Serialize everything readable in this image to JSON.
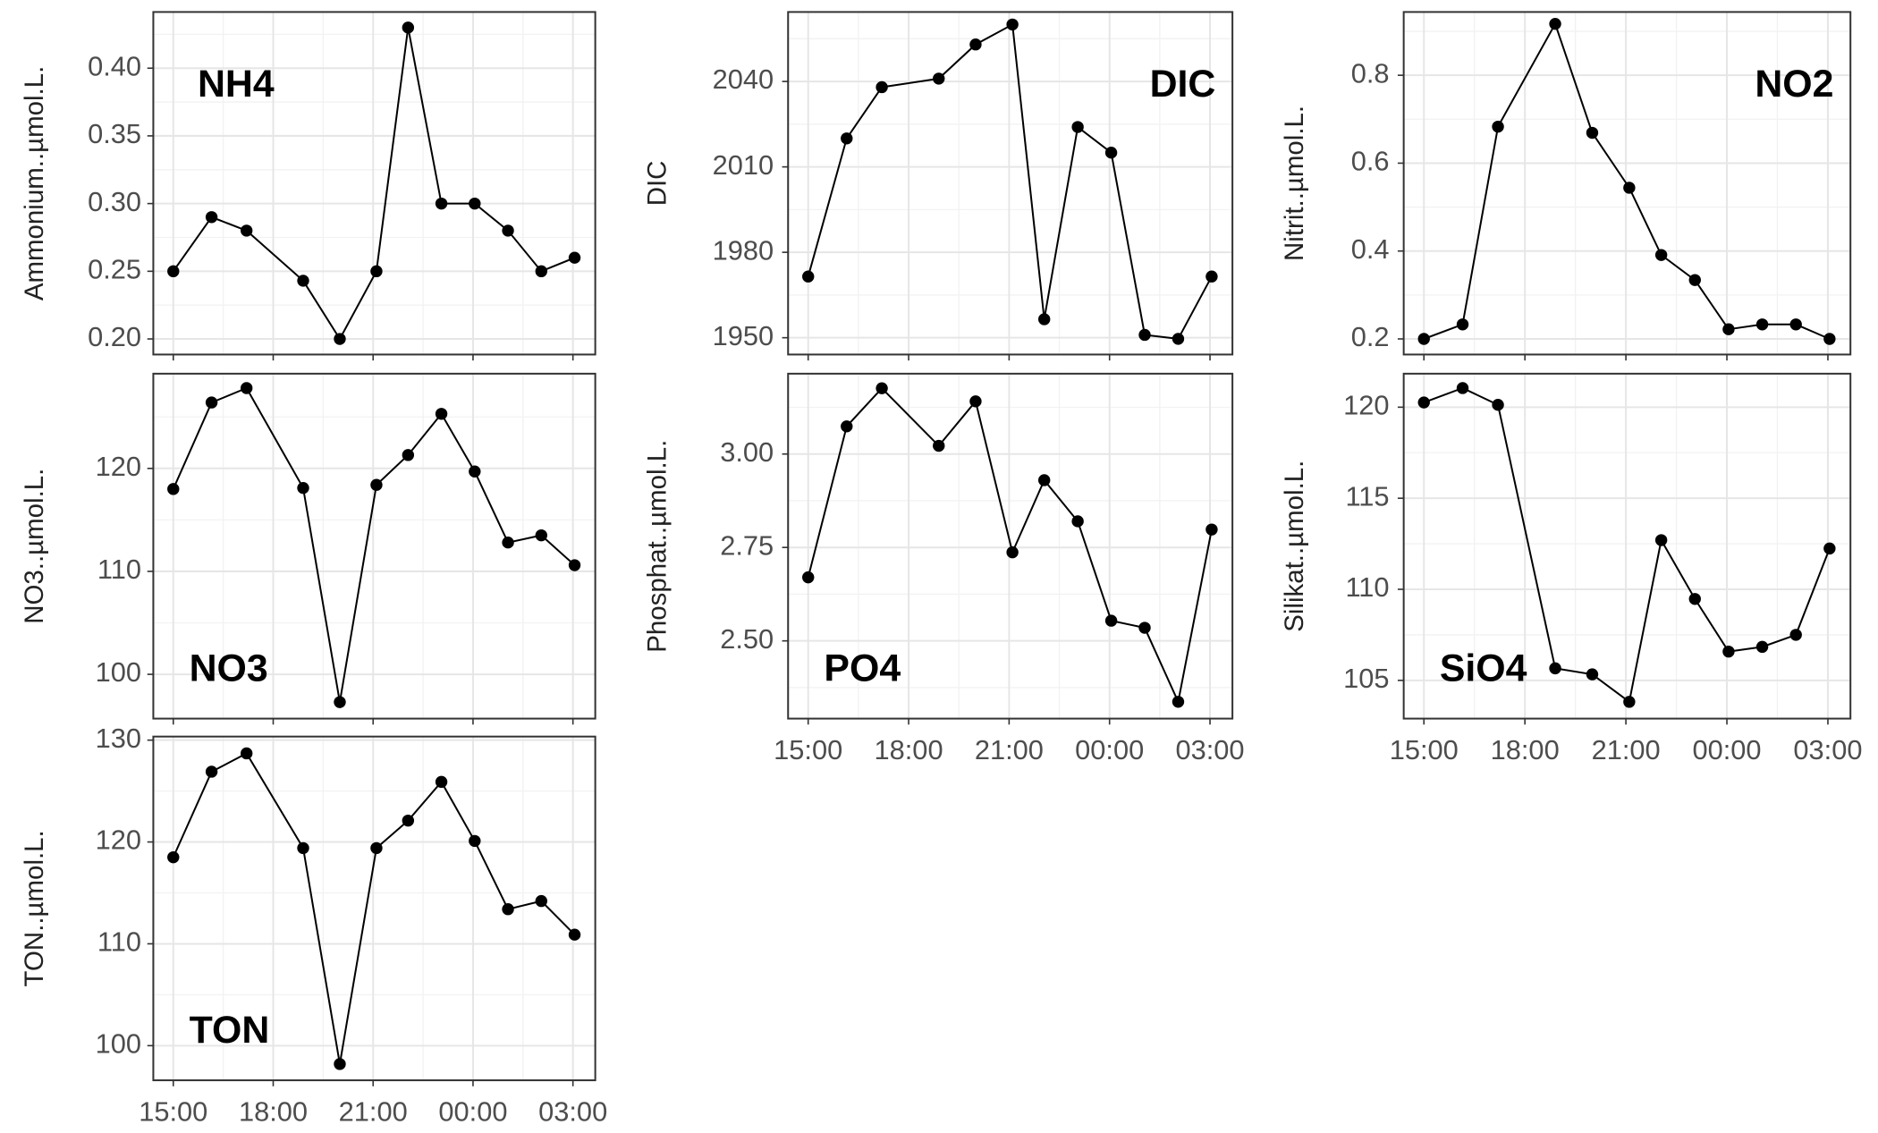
{
  "chart_data": [
    {
      "type": "line",
      "label": "NH4",
      "ylabel": "Ammonium..µmol.L.",
      "x": [
        15,
        16.15,
        17.2,
        18.9,
        20.0,
        21.1,
        22.05,
        23.05,
        24.05,
        25.05,
        26.05,
        27.05
      ],
      "values": [
        0.25,
        0.29,
        0.28,
        0.243,
        0.2,
        0.25,
        0.43,
        0.3,
        0.3,
        0.28,
        0.25,
        0.26
      ],
      "xlim": [
        14.4,
        27.67
      ],
      "xticks": [
        15,
        18,
        21,
        24,
        27
      ],
      "ylim": [
        0.1885,
        0.4415
      ],
      "yticks": [
        {
          "value": 0.2,
          "label": "0.20"
        },
        0.25,
        {
          "value": 0.3,
          "label": "0.30"
        },
        0.35,
        {
          "value": 0.4,
          "label": "0.40"
        }
      ],
      "color": "#000000",
      "grid": true
    },
    {
      "type": "line",
      "label": "DIC",
      "ylabel": "DIC",
      "x": [
        15,
        16.15,
        17.2,
        18.9,
        20.0,
        21.1,
        22.05,
        23.05,
        24.05,
        25.05,
        26.05,
        27.05
      ],
      "values": [
        1971.5,
        2020,
        2038,
        2041,
        2053,
        2060,
        1956.5,
        2024,
        2015,
        1951,
        1949.6,
        1971.5
      ],
      "xlim": [
        14.4,
        27.67
      ],
      "xticks": [
        15,
        18,
        21,
        24,
        27
      ],
      "ylim": [
        1944.1,
        2064.4
      ],
      "yticks": [
        1950,
        1980,
        2010,
        2040
      ],
      "color": "#000000",
      "grid": true
    },
    {
      "type": "line",
      "label": "NO2",
      "ylabel": "Nitrit..µmol.L.",
      "x": [
        15,
        16.15,
        17.2,
        18.9,
        20.0,
        21.1,
        22.05,
        23.05,
        24.05,
        25.05,
        26.05,
        27.05
      ],
      "values": [
        0.2,
        0.233,
        0.683,
        0.917,
        0.669,
        0.544,
        0.391,
        0.334,
        0.222,
        0.233,
        0.233,
        0.2
      ],
      "xlim": [
        14.4,
        27.67
      ],
      "xticks": [
        15,
        18,
        21,
        24,
        27
      ],
      "ylim": [
        0.1645,
        0.944
      ],
      "yticks": [
        0.2,
        0.4,
        0.6,
        0.8
      ],
      "color": "#000000",
      "grid": true
    },
    {
      "type": "line",
      "label": "NO3",
      "ylabel": "NO3..µmol.L.",
      "x": [
        15,
        16.15,
        17.2,
        18.9,
        20.0,
        21.1,
        22.05,
        23.05,
        24.05,
        25.05,
        26.05,
        27.05
      ],
      "values": [
        118.0,
        126.4,
        127.8,
        118.1,
        97.3,
        118.4,
        121.3,
        125.3,
        119.7,
        112.8,
        113.5,
        110.6
      ],
      "xlim": [
        14.4,
        27.67
      ],
      "xticks": [
        15,
        18,
        21,
        24,
        27
      ],
      "ylim": [
        95.7,
        129.2
      ],
      "yticks": [
        100,
        110,
        120
      ],
      "color": "#000000",
      "grid": true
    },
    {
      "type": "line",
      "label": "PO4",
      "ylabel": "Phosphat..µmol.L.",
      "x": [
        15,
        16.15,
        17.2,
        18.9,
        20.0,
        21.1,
        22.05,
        23.05,
        24.05,
        25.05,
        26.05,
        27.05
      ],
      "values": [
        2.67,
        3.074,
        3.176,
        3.022,
        3.141,
        2.737,
        2.93,
        2.82,
        2.554,
        2.535,
        2.337,
        2.798
      ],
      "xlim": [
        14.4,
        27.67
      ],
      "xticks": [
        {
          "value": 15,
          "label": "15:00"
        },
        {
          "value": 18,
          "label": "18:00"
        },
        {
          "value": 21,
          "label": "21:00"
        },
        {
          "value": 24,
          "label": "00:00"
        },
        {
          "value": 27,
          "label": "03:00"
        }
      ],
      "ylim": [
        2.292,
        3.215
      ],
      "yticks": [
        {
          "value": 2.5,
          "label": "2.50"
        },
        2.75,
        {
          "value": 3,
          "label": "3.00"
        }
      ],
      "color": "#000000",
      "grid": true
    },
    {
      "type": "line",
      "label": "SiO4",
      "ylabel": "Silikat..µmol.L.",
      "x": [
        15,
        16.15,
        17.2,
        18.9,
        20.0,
        21.1,
        22.05,
        23.05,
        24.05,
        25.05,
        26.05,
        27.05
      ],
      "values": [
        120.26,
        121.05,
        120.13,
        105.66,
        105.33,
        103.82,
        112.7,
        109.47,
        106.58,
        106.84,
        107.5,
        112.24
      ],
      "xlim": [
        14.4,
        27.67
      ],
      "xticks": [
        {
          "value": 15,
          "label": "15:00"
        },
        {
          "value": 18,
          "label": "18:00"
        },
        {
          "value": 21,
          "label": "21:00"
        },
        {
          "value": 24,
          "label": "00:00"
        },
        {
          "value": 27,
          "label": "03:00"
        }
      ],
      "ylim": [
        102.9,
        121.84
      ],
      "yticks": [
        105,
        110,
        115,
        120
      ],
      "color": "#000000",
      "grid": true
    },
    {
      "type": "line",
      "label": "TON",
      "ylabel": "TON..µmol.L.",
      "x": [
        15,
        16.15,
        17.2,
        18.9,
        20.0,
        21.1,
        22.05,
        23.05,
        24.05,
        25.05,
        26.05,
        27.05
      ],
      "values": [
        118.5,
        126.9,
        128.7,
        119.4,
        98.2,
        119.4,
        122.1,
        125.9,
        120.1,
        113.4,
        114.2,
        110.9
      ],
      "xlim": [
        14.4,
        27.67
      ],
      "xticks": [
        {
          "value": 15,
          "label": "15:00"
        },
        {
          "value": 18,
          "label": "18:00"
        },
        {
          "value": 21,
          "label": "21:00"
        },
        {
          "value": 24,
          "label": "00:00"
        },
        {
          "value": 27,
          "label": "03:00"
        }
      ],
      "ylim": [
        96.6,
        130.35
      ],
      "yticks": [
        100,
        110,
        120,
        130
      ],
      "color": "#000000",
      "grid": true
    }
  ]
}
